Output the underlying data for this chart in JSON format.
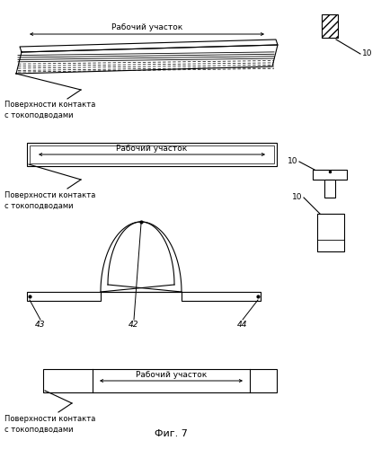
{
  "title": "Фиг. 7",
  "fig_width": 4.34,
  "fig_height": 5.0,
  "dpi": 100,
  "bg_color": "#ffffff",
  "line_color": "#000000",
  "label_rabochiy": "Рабочий участок",
  "label_poverkhnosti": "Поверхности контакта\nс токоподводами",
  "label_10": "10",
  "label_43": "43",
  "label_42": "42",
  "label_44": "44"
}
